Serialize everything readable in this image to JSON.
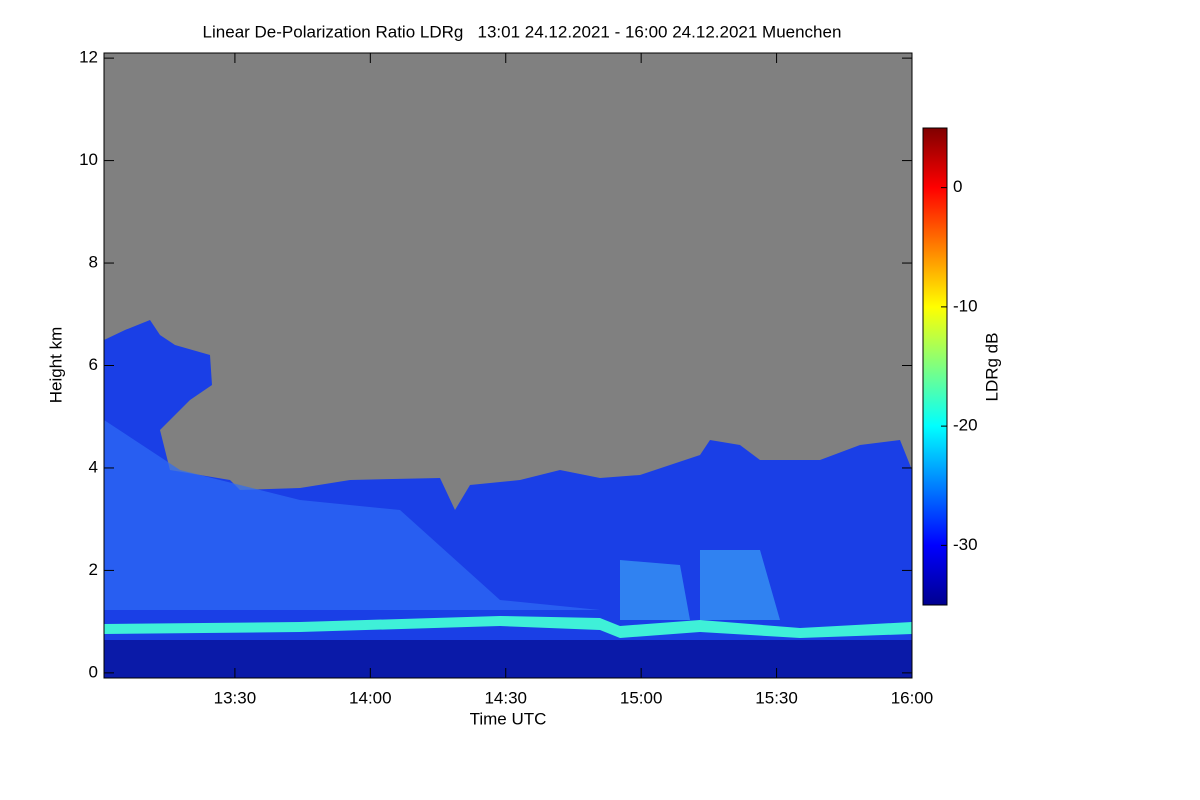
{
  "chart_data": {
    "type": "heatmap",
    "title": "Linear De-Polarization Ratio LDRg   13:01 24.12.2021 - 16:00 24.12.2021 Muenchen",
    "x_label": "Time UTC",
    "y_label": "Height km",
    "xlim": [
      781,
      960
    ],
    "xticks": [
      {
        "value": 810,
        "label": "13:30"
      },
      {
        "value": 840,
        "label": "14:00"
      },
      {
        "value": 870,
        "label": "14:30"
      },
      {
        "value": 900,
        "label": "15:00"
      },
      {
        "value": 930,
        "label": "15:30"
      },
      {
        "value": 960,
        "label": "16:00"
      }
    ],
    "ylim": [
      -0.1,
      12.1
    ],
    "yticks": [
      0,
      2,
      4,
      6,
      8,
      10,
      12
    ],
    "colorbar_label": "LDRg dB",
    "clim": [
      -35,
      5
    ],
    "colorbar_ticks": [
      0,
      -10,
      -20,
      -30
    ]
  }
}
